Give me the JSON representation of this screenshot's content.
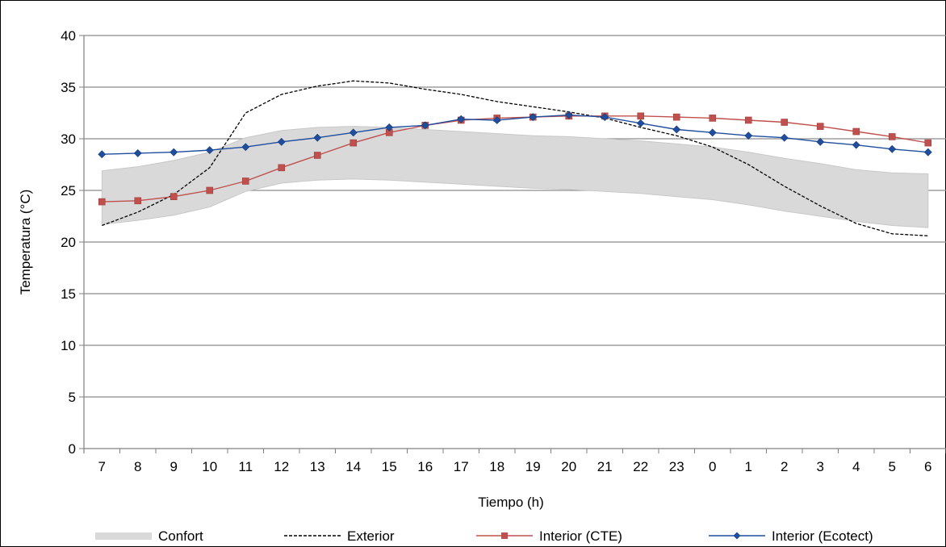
{
  "chart_data": {
    "type": "line",
    "title": "",
    "xlabel": "Tiempo (h)",
    "ylabel": "Temperatura (°C)",
    "ylim": [
      0,
      40
    ],
    "yticks": [
      0,
      5,
      10,
      15,
      20,
      25,
      30,
      35,
      40
    ],
    "grid": "horizontal",
    "legend_position": "bottom",
    "categories": [
      "7",
      "8",
      "9",
      "10",
      "11",
      "12",
      "13",
      "14",
      "15",
      "16",
      "17",
      "18",
      "19",
      "20",
      "21",
      "22",
      "23",
      "0",
      "1",
      "2",
      "3",
      "4",
      "5",
      "6"
    ],
    "comfort_band": {
      "name": "Confort",
      "color": "#d9d9d9",
      "lower": [
        21.7,
        22.1,
        22.6,
        23.4,
        24.9,
        25.7,
        26.0,
        26.1,
        26.0,
        25.8,
        25.6,
        25.4,
        25.2,
        25.1,
        24.9,
        24.7,
        24.4,
        24.1,
        23.6,
        23.0,
        22.5,
        22.0,
        21.6,
        21.4
      ],
      "upper": [
        26.9,
        27.3,
        27.9,
        28.7,
        30.1,
        30.8,
        31.1,
        31.2,
        31.1,
        30.9,
        30.7,
        30.5,
        30.3,
        30.2,
        30.0,
        29.8,
        29.5,
        29.2,
        28.7,
        28.1,
        27.6,
        27.0,
        26.7,
        26.6
      ]
    },
    "series": [
      {
        "name": "Exterior",
        "color": "#000000",
        "style": "dashed",
        "marker": "none",
        "values": [
          21.6,
          22.9,
          24.6,
          27.2,
          32.5,
          34.3,
          35.1,
          35.6,
          35.4,
          34.8,
          34.3,
          33.6,
          33.1,
          32.6,
          32.0,
          31.1,
          30.3,
          29.2,
          27.5,
          25.4,
          23.5,
          21.8,
          20.8,
          20.6
        ]
      },
      {
        "name": "Interior (CTE)",
        "color": "#c0504d",
        "style": "solid",
        "marker": "square",
        "values": [
          23.9,
          24.0,
          24.4,
          25.0,
          25.9,
          27.2,
          28.4,
          29.6,
          30.6,
          31.3,
          31.8,
          32.0,
          32.1,
          32.2,
          32.2,
          32.2,
          32.1,
          32.0,
          31.8,
          31.6,
          31.2,
          30.7,
          30.2,
          29.6
        ]
      },
      {
        "name": "Interior (Ecotect)",
        "color": "#1f4e9e",
        "style": "solid",
        "marker": "diamond",
        "values": [
          28.5,
          28.6,
          28.7,
          28.9,
          29.2,
          29.7,
          30.1,
          30.6,
          31.1,
          31.3,
          31.9,
          31.8,
          32.1,
          32.3,
          32.1,
          31.5,
          30.9,
          30.6,
          30.3,
          30.1,
          29.7,
          29.4,
          29.0,
          28.7
        ]
      }
    ]
  }
}
